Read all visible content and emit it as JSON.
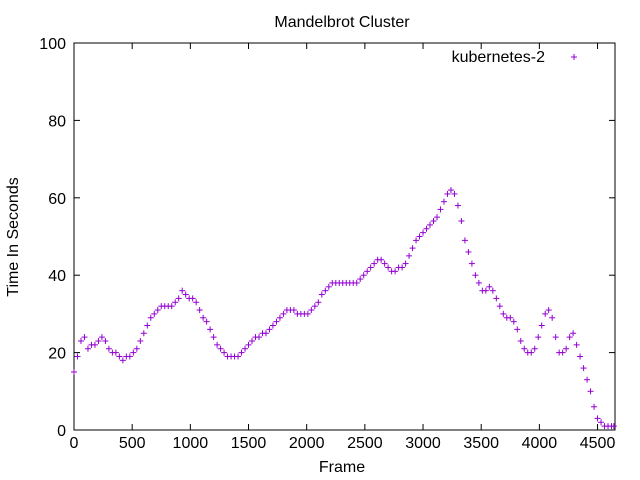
{
  "chart_data": {
    "type": "scatter",
    "title": "Mandelbrot Cluster",
    "xlabel": "Frame",
    "ylabel": "Time In Seconds",
    "xlim": [
      0,
      4650
    ],
    "ylim": [
      0,
      100
    ],
    "xticks": [
      "0",
      "500",
      "1000",
      "1500",
      "2000",
      "2500",
      "3000",
      "3500",
      "4000",
      "4500"
    ],
    "yticks": [
      "0",
      "20",
      "40",
      "60",
      "80",
      "100"
    ],
    "grid": false,
    "legend_position": "top-right",
    "marker": "+",
    "series": [
      {
        "name": "kubernetes-2",
        "color": "#9400D3",
        "points": [
          [
            0,
            15
          ],
          [
            30,
            19
          ],
          [
            60,
            23
          ],
          [
            90,
            24
          ],
          [
            120,
            21
          ],
          [
            150,
            22
          ],
          [
            180,
            22
          ],
          [
            210,
            23
          ],
          [
            240,
            24
          ],
          [
            270,
            23
          ],
          [
            300,
            21
          ],
          [
            330,
            20
          ],
          [
            360,
            20
          ],
          [
            390,
            19
          ],
          [
            420,
            18
          ],
          [
            450,
            19
          ],
          [
            480,
            19
          ],
          [
            510,
            20
          ],
          [
            540,
            21
          ],
          [
            570,
            23
          ],
          [
            600,
            25
          ],
          [
            630,
            27
          ],
          [
            660,
            29
          ],
          [
            690,
            30
          ],
          [
            720,
            31
          ],
          [
            750,
            32
          ],
          [
            780,
            32
          ],
          [
            810,
            32
          ],
          [
            840,
            32
          ],
          [
            870,
            33
          ],
          [
            900,
            34
          ],
          [
            930,
            36
          ],
          [
            960,
            35
          ],
          [
            990,
            34
          ],
          [
            1020,
            34
          ],
          [
            1050,
            33
          ],
          [
            1080,
            31
          ],
          [
            1110,
            29
          ],
          [
            1140,
            28
          ],
          [
            1170,
            26
          ],
          [
            1200,
            24
          ],
          [
            1230,
            22
          ],
          [
            1260,
            21
          ],
          [
            1290,
            20
          ],
          [
            1320,
            19
          ],
          [
            1350,
            19
          ],
          [
            1380,
            19
          ],
          [
            1410,
            19
          ],
          [
            1440,
            20
          ],
          [
            1470,
            21
          ],
          [
            1500,
            22
          ],
          [
            1530,
            23
          ],
          [
            1560,
            24
          ],
          [
            1590,
            24
          ],
          [
            1620,
            25
          ],
          [
            1650,
            25
          ],
          [
            1680,
            26
          ],
          [
            1710,
            27
          ],
          [
            1740,
            28
          ],
          [
            1770,
            29
          ],
          [
            1800,
            30
          ],
          [
            1830,
            31
          ],
          [
            1860,
            31
          ],
          [
            1890,
            31
          ],
          [
            1920,
            30
          ],
          [
            1950,
            30
          ],
          [
            1980,
            30
          ],
          [
            2010,
            30
          ],
          [
            2040,
            31
          ],
          [
            2070,
            32
          ],
          [
            2100,
            33
          ],
          [
            2130,
            35
          ],
          [
            2160,
            36
          ],
          [
            2190,
            37
          ],
          [
            2220,
            38
          ],
          [
            2250,
            38
          ],
          [
            2280,
            38
          ],
          [
            2310,
            38
          ],
          [
            2340,
            38
          ],
          [
            2370,
            38
          ],
          [
            2400,
            38
          ],
          [
            2430,
            38
          ],
          [
            2460,
            39
          ],
          [
            2490,
            40
          ],
          [
            2520,
            41
          ],
          [
            2550,
            42
          ],
          [
            2580,
            43
          ],
          [
            2610,
            44
          ],
          [
            2640,
            44
          ],
          [
            2670,
            43
          ],
          [
            2700,
            42
          ],
          [
            2730,
            41
          ],
          [
            2760,
            41
          ],
          [
            2790,
            42
          ],
          [
            2820,
            42
          ],
          [
            2850,
            43
          ],
          [
            2880,
            45
          ],
          [
            2910,
            47
          ],
          [
            2940,
            49
          ],
          [
            2970,
            50
          ],
          [
            3000,
            51
          ],
          [
            3030,
            52
          ],
          [
            3060,
            53
          ],
          [
            3090,
            54
          ],
          [
            3120,
            55
          ],
          [
            3150,
            57
          ],
          [
            3180,
            59
          ],
          [
            3210,
            61
          ],
          [
            3240,
            62
          ],
          [
            3270,
            61
          ],
          [
            3300,
            58
          ],
          [
            3330,
            54
          ],
          [
            3360,
            49
          ],
          [
            3390,
            46
          ],
          [
            3420,
            43
          ],
          [
            3450,
            40
          ],
          [
            3480,
            38
          ],
          [
            3510,
            36
          ],
          [
            3540,
            36
          ],
          [
            3570,
            37
          ],
          [
            3600,
            36
          ],
          [
            3630,
            34
          ],
          [
            3660,
            32
          ],
          [
            3690,
            30
          ],
          [
            3720,
            29
          ],
          [
            3750,
            29
          ],
          [
            3780,
            28
          ],
          [
            3810,
            26
          ],
          [
            3840,
            23
          ],
          [
            3870,
            21
          ],
          [
            3900,
            20
          ],
          [
            3930,
            20
          ],
          [
            3960,
            21
          ],
          [
            3990,
            24
          ],
          [
            4020,
            27
          ],
          [
            4050,
            30
          ],
          [
            4080,
            31
          ],
          [
            4110,
            29
          ],
          [
            4140,
            24
          ],
          [
            4170,
            20
          ],
          [
            4200,
            20
          ],
          [
            4230,
            21
          ],
          [
            4260,
            24
          ],
          [
            4290,
            25
          ],
          [
            4320,
            22
          ],
          [
            4350,
            19
          ],
          [
            4380,
            16
          ],
          [
            4410,
            13
          ],
          [
            4440,
            10
          ],
          [
            4470,
            6
          ],
          [
            4500,
            3
          ],
          [
            4530,
            2
          ],
          [
            4560,
            1
          ],
          [
            4590,
            1
          ],
          [
            4620,
            1
          ],
          [
            4640,
            1
          ]
        ]
      }
    ]
  }
}
